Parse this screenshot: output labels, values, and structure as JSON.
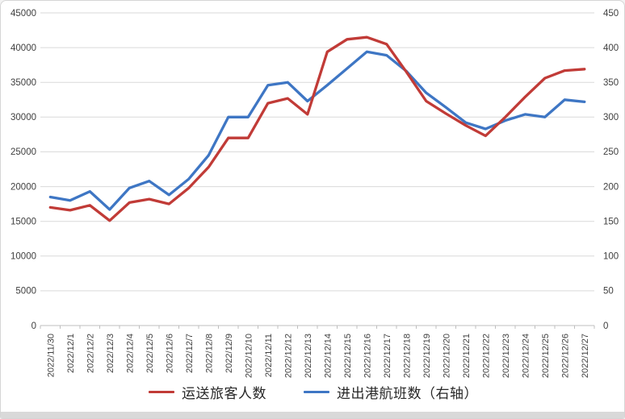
{
  "chart_data": {
    "type": "line",
    "title": "",
    "categories": [
      "2022/11/30",
      "2022/12/1",
      "2022/12/2",
      "2022/12/3",
      "2022/12/4",
      "2022/12/5",
      "2022/12/6",
      "2022/12/7",
      "2022/12/8",
      "2022/12/9",
      "2022/12/10",
      "2022/12/11",
      "2022/12/12",
      "2022/12/13",
      "2022/12/14",
      "2022/12/15",
      "2022/12/16",
      "2022/12/17",
      "2022/12/18",
      "2022/12/19",
      "2022/12/20",
      "2022/12/21",
      "2022/12/22",
      "2022/12/23",
      "2022/12/24",
      "2022/12/25",
      "2022/12/26",
      "2022/12/27"
    ],
    "series": [
      {
        "name": "运送旅客人数",
        "axis": "left",
        "color": "#c13b37",
        "values": [
          17000,
          16600,
          17300,
          15100,
          17700,
          18200,
          17500,
          19800,
          22800,
          27000,
          27000,
          32000,
          32700,
          30400,
          39400,
          41200,
          41500,
          40500,
          36500,
          32300,
          30500,
          28800,
          27300,
          30000,
          32900,
          35600,
          36700,
          36900
        ]
      },
      {
        "name": "进出港航班数（右轴）",
        "axis": "right",
        "color": "#3e76c4",
        "values": [
          185,
          180,
          193,
          167,
          198,
          208,
          188,
          211,
          245,
          300,
          300,
          346,
          350,
          323,
          346,
          370,
          394,
          389,
          366,
          335,
          314,
          292,
          283,
          295,
          304,
          300,
          325,
          322
        ]
      }
    ],
    "left_axis": {
      "min": 0,
      "max": 45000,
      "step": 5000,
      "tick_labels": [
        "45000",
        "40000",
        "35000",
        "30000",
        "25000",
        "20000",
        "15000",
        "10000",
        "5000",
        "0"
      ]
    },
    "right_axis": {
      "min": 0,
      "max": 450,
      "step": 50,
      "tick_labels": [
        "450",
        "400",
        "350",
        "300",
        "250",
        "200",
        "150",
        "100",
        "50",
        "0"
      ]
    },
    "grid": true,
    "legend_position": "bottom"
  },
  "style": {
    "gridline_color": "#d9d9d9",
    "axis_line_color": "#bfbfbf",
    "axis_text_color": "#404040"
  }
}
